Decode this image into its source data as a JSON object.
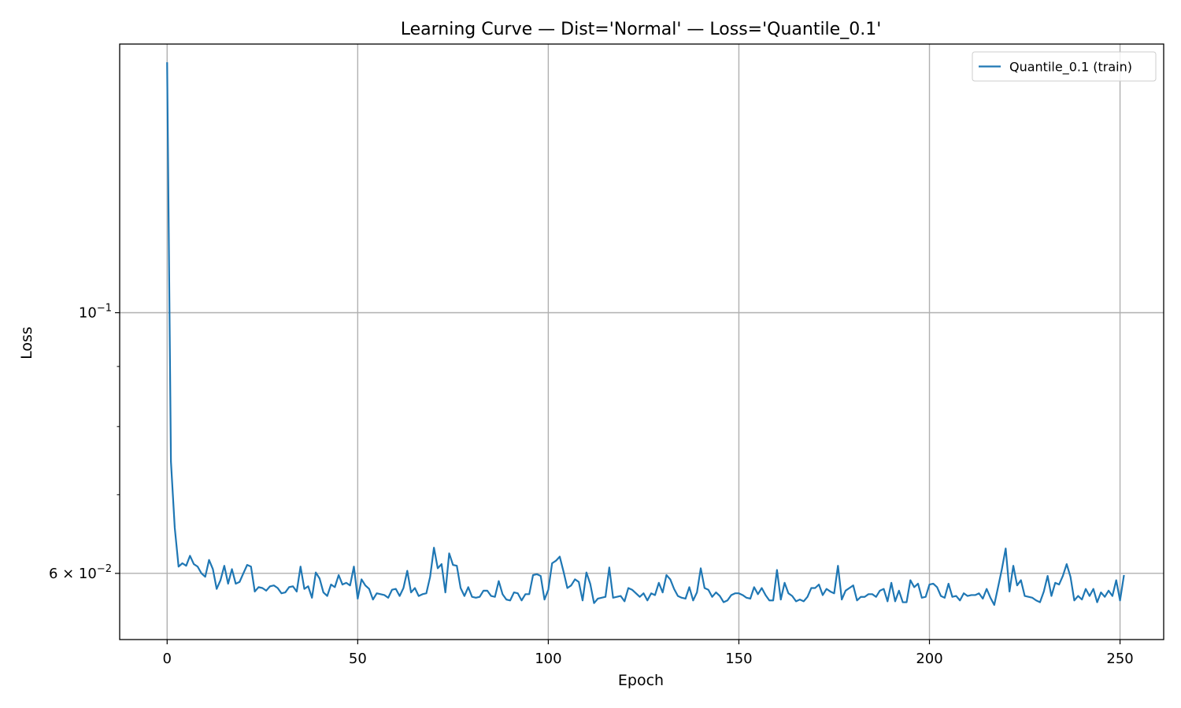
{
  "chart_data": {
    "type": "line",
    "title": "Learning Curve — Dist='Normal' — Loss='Quantile_0.1'",
    "xlabel": "Epoch",
    "ylabel": "Loss",
    "xlim": [
      -12.45,
      261.45
    ],
    "ylim": [
      0.0527,
      0.1693
    ],
    "yscale": "log",
    "grid": true,
    "legend_position": "top-right",
    "x_ticks": [
      {
        "value": 0,
        "label": "0"
      },
      {
        "value": 50,
        "label": "50"
      },
      {
        "value": 100,
        "label": "100"
      },
      {
        "value": 150,
        "label": "150"
      },
      {
        "value": 200,
        "label": "200"
      },
      {
        "value": 250,
        "label": "250"
      }
    ],
    "y_ticks": [
      {
        "value": 0.1,
        "base": "10",
        "exponent": "−1"
      },
      {
        "value": 0.06,
        "base": "6 × 10",
        "exponent": "−2"
      }
    ],
    "y_minor_ticks": [
      0.07,
      0.08,
      0.09
    ],
    "series": [
      {
        "name": "Quantile_0.1 (train)",
        "color": "#1f77b4",
        "x_start": 0,
        "values": [
          0.1631,
          0.0747,
          0.0656,
          0.0608,
          0.0612,
          0.0609,
          0.0621,
          0.0611,
          0.0608,
          0.06,
          0.0596,
          0.0616,
          0.0605,
          0.0582,
          0.0592,
          0.0609,
          0.0588,
          0.0605,
          0.0588,
          0.059,
          0.06,
          0.061,
          0.0608,
          0.0579,
          0.0584,
          0.0583,
          0.058,
          0.0585,
          0.0586,
          0.0583,
          0.0577,
          0.0578,
          0.0584,
          0.0585,
          0.0579,
          0.0608,
          0.0582,
          0.0585,
          0.0572,
          0.0601,
          0.0594,
          0.0578,
          0.0574,
          0.0587,
          0.0584,
          0.0598,
          0.0587,
          0.0589,
          0.0586,
          0.0608,
          0.0571,
          0.0593,
          0.0586,
          0.0582,
          0.057,
          0.0577,
          0.0576,
          0.0575,
          0.0572,
          0.0581,
          0.0582,
          0.0574,
          0.0583,
          0.0603,
          0.0578,
          0.0583,
          0.0574,
          0.0576,
          0.0577,
          0.0596,
          0.0631,
          0.0606,
          0.0611,
          0.0578,
          0.0624,
          0.061,
          0.0609,
          0.0583,
          0.0574,
          0.0584,
          0.0573,
          0.0572,
          0.0573,
          0.058,
          0.058,
          0.0574,
          0.0573,
          0.0591,
          0.0576,
          0.057,
          0.0569,
          0.0578,
          0.0577,
          0.0569,
          0.0576,
          0.0576,
          0.0598,
          0.0599,
          0.0597,
          0.057,
          0.0581,
          0.0612,
          0.0615,
          0.062,
          0.0602,
          0.0583,
          0.0586,
          0.0593,
          0.059,
          0.0569,
          0.0601,
          0.0588,
          0.0566,
          0.0571,
          0.0572,
          0.0573,
          0.0607,
          0.0572,
          0.0573,
          0.0574,
          0.0568,
          0.0583,
          0.0581,
          0.0577,
          0.0573,
          0.0577,
          0.0569,
          0.0577,
          0.0575,
          0.0589,
          0.0578,
          0.0598,
          0.0593,
          0.0582,
          0.0574,
          0.0572,
          0.0571,
          0.0584,
          0.0569,
          0.0578,
          0.0606,
          0.0583,
          0.0581,
          0.0573,
          0.0578,
          0.0574,
          0.0567,
          0.0569,
          0.0575,
          0.0577,
          0.0577,
          0.0575,
          0.0572,
          0.0571,
          0.0584,
          0.0576,
          0.0583,
          0.0575,
          0.0569,
          0.0569,
          0.0604,
          0.057,
          0.0589,
          0.0577,
          0.0574,
          0.0568,
          0.057,
          0.0568,
          0.0573,
          0.0583,
          0.0583,
          0.0587,
          0.0575,
          0.0582,
          0.0579,
          0.0577,
          0.0609,
          0.057,
          0.058,
          0.0583,
          0.0586,
          0.0569,
          0.0573,
          0.0573,
          0.0576,
          0.0576,
          0.0573,
          0.058,
          0.0582,
          0.0568,
          0.0589,
          0.0568,
          0.058,
          0.0567,
          0.0567,
          0.0592,
          0.0584,
          0.0588,
          0.0572,
          0.0573,
          0.0587,
          0.0588,
          0.0584,
          0.0574,
          0.0572,
          0.0588,
          0.0573,
          0.0574,
          0.0569,
          0.0577,
          0.0574,
          0.0575,
          0.0575,
          0.0577,
          0.0571,
          0.0582,
          0.0572,
          0.0564,
          0.0584,
          0.0605,
          0.063,
          0.0579,
          0.0609,
          0.0586,
          0.0592,
          0.0574,
          0.0573,
          0.0572,
          0.0569,
          0.0567,
          0.0579,
          0.0597,
          0.0574,
          0.0589,
          0.0587,
          0.0597,
          0.0611,
          0.0596,
          0.0569,
          0.0574,
          0.057,
          0.0582,
          0.0574,
          0.0582,
          0.0567,
          0.0578,
          0.0573,
          0.058,
          0.0574,
          0.0592,
          0.0569,
          0.0597
        ]
      }
    ]
  }
}
